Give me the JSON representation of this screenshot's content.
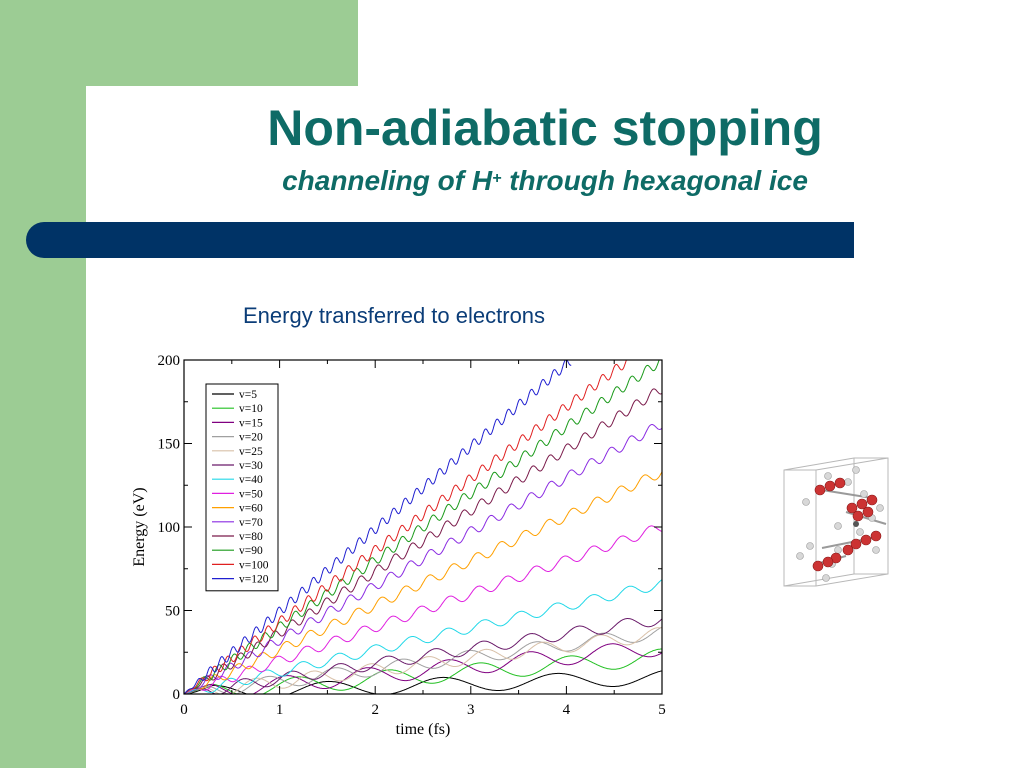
{
  "slide": {
    "title": "Non-adiabatic stopping",
    "subtitle_pre": "channeling of H",
    "subtitle_sup": "+",
    "subtitle_post": " through hexagonal ice",
    "caption": "Energy transferred to electrons"
  },
  "colors": {
    "green": "#9ccc94",
    "title": "#0e6b66",
    "bar": "#003366",
    "caption": "#0b3d78"
  },
  "molecule": {
    "icon": "hexagonal-ice-structure-icon"
  },
  "chart_data": {
    "type": "line",
    "title": "",
    "xlabel": "time (fs)",
    "ylabel": "Energy (eV)",
    "xlim": [
      0,
      5
    ],
    "ylim": [
      0,
      200
    ],
    "xticks": [
      "0",
      "1",
      "2",
      "3",
      "4",
      "5"
    ],
    "yticks": [
      "0",
      "50",
      "100",
      "150",
      "200"
    ],
    "legend_position": "top-left",
    "grid": false,
    "series": [
      {
        "name": "v=5",
        "color": "#000000",
        "x_end": 5.0,
        "y_end": 10,
        "osc_amp": 4.5,
        "osc_period": 1.2
      },
      {
        "name": "v=10",
        "color": "#22c022",
        "x_end": 5.0,
        "y_end": 22,
        "osc_amp": 5,
        "osc_period": 0.95
      },
      {
        "name": "v=15",
        "color": "#800080",
        "x_end": 5.0,
        "y_end": 28,
        "osc_amp": 5,
        "osc_period": 0.85
      },
      {
        "name": "v=20",
        "color": "#a0a0a0",
        "x_end": 5.0,
        "y_end": 37,
        "osc_amp": 4,
        "osc_period": 0.7
      },
      {
        "name": "v=25",
        "color": "#d8c0a8",
        "x_end": 5.0,
        "y_end": 36,
        "osc_amp": 4,
        "osc_period": 0.6
      },
      {
        "name": "v=30",
        "color": "#6a1b6a",
        "x_end": 5.0,
        "y_end": 45,
        "osc_amp": 3.5,
        "osc_period": 0.5
      },
      {
        "name": "v=40",
        "color": "#22d8e8",
        "x_end": 5.0,
        "y_end": 66,
        "osc_amp": 3,
        "osc_period": 0.38
      },
      {
        "name": "v=50",
        "color": "#e020e0",
        "x_end": 5.0,
        "y_end": 100,
        "osc_amp": 3,
        "osc_period": 0.3
      },
      {
        "name": "v=60",
        "color": "#ffa000",
        "x_end": 5.0,
        "y_end": 133,
        "osc_amp": 3,
        "osc_period": 0.25
      },
      {
        "name": "v=70",
        "color": "#8a2be2",
        "x_end": 5.0,
        "y_end": 162,
        "osc_amp": 3,
        "osc_period": 0.21
      },
      {
        "name": "v=80",
        "color": "#7a1a4a",
        "x_end": 5.0,
        "y_end": 183,
        "osc_amp": 3,
        "osc_period": 0.18
      },
      {
        "name": "v=90",
        "color": "#1a9a1a",
        "x_end": 5.0,
        "y_end": 200,
        "osc_amp": 3,
        "osc_period": 0.16
      },
      {
        "name": "v=100",
        "color": "#e02020",
        "x_end": 4.65,
        "y_end": 200,
        "osc_amp": 3,
        "osc_period": 0.14
      },
      {
        "name": "v=120",
        "color": "#2020d0",
        "x_end": 4.05,
        "y_end": 200,
        "osc_amp": 3,
        "osc_period": 0.12
      }
    ]
  }
}
